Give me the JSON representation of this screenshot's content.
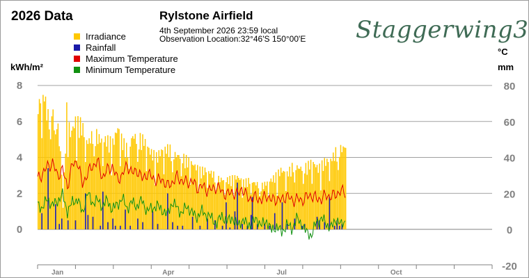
{
  "header": {
    "year_title": "2026 Data",
    "station": "Rylstone Airfield",
    "date_line": "4th September 2026  23:59 local",
    "location_line": "Observation Location:32°46'S 150°00'E",
    "brand": "Staggerwing3"
  },
  "colors": {
    "irradiance": "#ffc800",
    "rainfall": "#1a1aa8",
    "max_temp": "#e00000",
    "min_temp": "#109010",
    "grid": "#a0a0a0",
    "axis_text": "#808080"
  },
  "chart_data": {
    "type": "bar",
    "legend": [
      "Irradiance",
      "Rainfall",
      "Maximum Temperature",
      "Minimum Temperature"
    ],
    "legend_position": "top-left",
    "left_axis": {
      "label": "kWh/m²",
      "ticks": [
        0,
        2,
        4,
        6,
        8
      ],
      "range": [
        0,
        8
      ]
    },
    "right_axis": {
      "labels": [
        "°C",
        "mm"
      ],
      "ticks": [
        -20,
        0,
        20,
        40,
        60,
        80
      ],
      "range": [
        -20,
        80
      ]
    },
    "x_axis": {
      "month_labels": [
        {
          "label": "Jan",
          "day": 16
        },
        {
          "label": "Apr",
          "day": 105
        },
        {
          "label": "Jul",
          "day": 196
        },
        {
          "label": "Oct",
          "day": 288
        }
      ],
      "days_in_year": 365
    },
    "grid": true,
    "series": [
      {
        "name": "Irradiance",
        "kind": "bar",
        "axis": "left",
        "anchor_days": [
          0,
          2,
          5,
          8,
          11,
          14,
          17,
          20,
          23,
          26,
          30,
          35,
          40,
          45,
          50,
          55,
          60,
          64,
          68,
          72,
          76,
          80,
          85,
          90,
          95,
          100,
          105,
          110,
          115,
          120,
          125,
          130,
          135,
          140,
          145,
          150,
          155,
          160,
          165,
          170,
          175,
          180,
          185,
          190,
          195,
          200,
          205,
          210,
          215,
          220,
          225,
          230,
          235,
          240,
          245,
          247
        ],
        "anchor_values": [
          7.3,
          7.6,
          7.9,
          6.7,
          7.4,
          5.5,
          6.8,
          1.2,
          7.1,
          5.6,
          6.4,
          6.2,
          5.1,
          5.8,
          5.3,
          5.3,
          5.1,
          6.0,
          5.2,
          4.7,
          5.5,
          5.4,
          5.3,
          4.6,
          4.3,
          4.7,
          4.8,
          4.4,
          4.3,
          4.1,
          3.8,
          3.5,
          3.5,
          3.3,
          3.0,
          2.9,
          3.0,
          3.1,
          2.8,
          2.9,
          2.7,
          2.6,
          2.8,
          3.1,
          3.5,
          3.3,
          3.8,
          3.6,
          3.7,
          4.0,
          3.6,
          4.0,
          4.1,
          4.7,
          4.8,
          4.9
        ]
      },
      {
        "name": "Rainfall",
        "kind": "bar",
        "axis": "right",
        "days": [
          3,
          8,
          14,
          17,
          19,
          24,
          30,
          38,
          40,
          44,
          50,
          52,
          56,
          60,
          62,
          66,
          70,
          74,
          80,
          84,
          92,
          96,
          104,
          108,
          112,
          116,
          124,
          130,
          136,
          142,
          148,
          151,
          154,
          158,
          160,
          164,
          168,
          171,
          172,
          176,
          182,
          186,
          190,
          196,
          200,
          206,
          212,
          214,
          224,
          226,
          230,
          234,
          238,
          240,
          242,
          244
        ],
        "values": [
          9,
          34,
          14,
          3,
          6,
          5,
          5,
          20,
          8,
          7,
          2,
          21,
          4,
          6,
          2,
          2,
          11,
          2,
          6,
          4,
          10,
          3,
          20,
          4,
          2,
          2,
          7,
          2,
          6,
          5,
          2,
          15,
          1,
          10,
          26,
          3,
          2,
          8,
          18,
          3,
          3,
          2,
          9,
          15,
          3,
          6,
          2,
          3,
          7,
          5,
          4,
          18,
          2,
          5,
          2,
          3
        ]
      },
      {
        "name": "Maximum Temperature",
        "kind": "line",
        "axis": "right",
        "anchor_days": [
          0,
          4,
          8,
          12,
          16,
          20,
          24,
          28,
          32,
          36,
          40,
          44,
          48,
          52,
          56,
          60,
          64,
          68,
          72,
          76,
          80,
          84,
          88,
          92,
          96,
          100,
          104,
          108,
          112,
          116,
          120,
          124,
          128,
          132,
          136,
          140,
          144,
          148,
          152,
          156,
          160,
          164,
          168,
          172,
          176,
          180,
          184,
          188,
          192,
          196,
          200,
          204,
          208,
          212,
          216,
          220,
          224,
          228,
          232,
          236,
          240,
          244,
          247
        ],
        "anchor_values": [
          28,
          31,
          35,
          37,
          30,
          33,
          24,
          36,
          38,
          25,
          31,
          35,
          38,
          29,
          33,
          35,
          28,
          30,
          36,
          31,
          33,
          28,
          31,
          29,
          27,
          28,
          24,
          26,
          29,
          27,
          26,
          27,
          23,
          24,
          22,
          22,
          24,
          21,
          19,
          21,
          19,
          23,
          18,
          17,
          18,
          16,
          19,
          16,
          17,
          16,
          19,
          16,
          17,
          16,
          18,
          19,
          17,
          17,
          19,
          18,
          20,
          21,
          21
        ]
      },
      {
        "name": "Minimum Temperature",
        "kind": "line",
        "axis": "right",
        "anchor_days": [
          0,
          4,
          8,
          12,
          16,
          20,
          24,
          28,
          32,
          36,
          40,
          44,
          48,
          52,
          56,
          60,
          64,
          68,
          72,
          76,
          80,
          84,
          88,
          92,
          96,
          100,
          104,
          108,
          112,
          116,
          120,
          124,
          128,
          132,
          136,
          140,
          144,
          148,
          152,
          156,
          160,
          164,
          168,
          172,
          176,
          180,
          184,
          188,
          192,
          196,
          200,
          204,
          208,
          212,
          216,
          220,
          224,
          228,
          232,
          236,
          240,
          244,
          247
        ],
        "anchor_values": [
          14,
          12,
          17,
          13,
          16,
          19,
          10,
          15,
          17,
          9,
          20,
          15,
          16,
          13,
          16,
          11,
          14,
          17,
          12,
          15,
          13,
          16,
          10,
          12,
          13,
          11,
          8,
          15,
          12,
          9,
          13,
          9,
          7,
          10,
          8,
          6,
          3,
          8,
          4,
          7,
          2,
          5,
          3,
          3,
          6,
          2,
          5,
          -1,
          2,
          -2,
          3,
          0,
          6,
          3,
          -2,
          -3,
          4,
          6,
          3,
          1,
          6,
          2,
          5
        ]
      }
    ]
  }
}
